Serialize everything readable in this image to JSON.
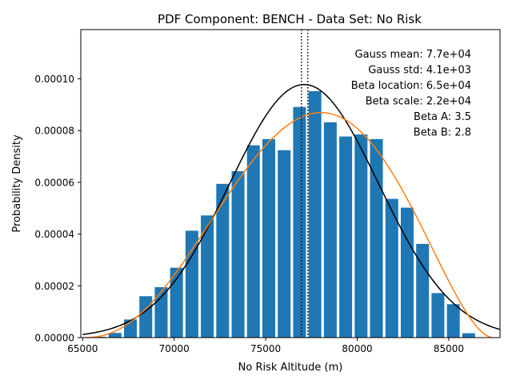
{
  "chart_data": {
    "type": "bar",
    "title": "PDF Component: BENCH - Data Set: No Risk",
    "xlabel": "No Risk Altitude (m)",
    "ylabel": "Probability Density",
    "xlim": [
      64900,
      87800
    ],
    "ylim": [
      0,
      0.000119
    ],
    "grid": false,
    "x_ticks": [
      {
        "value": 65000,
        "label": "65000"
      },
      {
        "value": 70000,
        "label": "70000"
      },
      {
        "value": 75000,
        "label": "75000"
      },
      {
        "value": 80000,
        "label": "80000"
      },
      {
        "value": 85000,
        "label": "85000"
      }
    ],
    "y_ticks": [
      {
        "value": 0,
        "label": "0.00000"
      },
      {
        "value": 2e-05,
        "label": "0.00002"
      },
      {
        "value": 4e-05,
        "label": "0.00004"
      },
      {
        "value": 6e-05,
        "label": "0.00006"
      },
      {
        "value": 8e-05,
        "label": "0.00008"
      },
      {
        "value": 0.0001,
        "label": "0.00010"
      }
    ],
    "bar_color": "#1f77b4",
    "bar_width": 700,
    "bars": [
      {
        "x": 65930,
        "y": 3e-07
      },
      {
        "x": 66770,
        "y": 1.8e-06
      },
      {
        "x": 67610,
        "y": 7e-06
      },
      {
        "x": 68450,
        "y": 1.6e-05
      },
      {
        "x": 69290,
        "y": 1.95e-05
      },
      {
        "x": 70130,
        "y": 2.7e-05
      },
      {
        "x": 70970,
        "y": 4.13e-05
      },
      {
        "x": 71810,
        "y": 4.72e-05
      },
      {
        "x": 72650,
        "y": 5.94e-05
      },
      {
        "x": 73490,
        "y": 6.43e-05
      },
      {
        "x": 74330,
        "y": 7.43e-05
      },
      {
        "x": 75170,
        "y": 7.67e-05
      },
      {
        "x": 76010,
        "y": 7.24e-05
      },
      {
        "x": 76850,
        "y": 8.91e-05
      },
      {
        "x": 77690,
        "y": 9.52e-05
      },
      {
        "x": 78530,
        "y": 8.32e-05
      },
      {
        "x": 79370,
        "y": 7.77e-05
      },
      {
        "x": 80210,
        "y": 7.85e-05
      },
      {
        "x": 81050,
        "y": 7.67e-05
      },
      {
        "x": 81890,
        "y": 5.36e-05
      },
      {
        "x": 82730,
        "y": 5.02e-05
      },
      {
        "x": 83570,
        "y": 3.62e-05
      },
      {
        "x": 84410,
        "y": 1.72e-05
      },
      {
        "x": 85250,
        "y": 1.29e-05
      },
      {
        "x": 86090,
        "y": 1.7e-06
      }
    ],
    "gauss": {
      "color": "#000000",
      "mean": 77100,
      "std": 4080
    },
    "beta": {
      "color": "#ff7f0e",
      "location": 65000,
      "scale": 22400,
      "a": 3.5,
      "b": 2.8
    },
    "vlines": [
      {
        "x": 76950,
        "style": "dotted"
      },
      {
        "x": 77300,
        "style": "dotted"
      }
    ],
    "annotations": [
      "Gauss mean: 7.7e+04",
      "Gauss std: 4.1e+03",
      "Beta location: 6.5e+04",
      "Beta scale: 2.2e+04",
      "Beta A: 3.5",
      "Beta B: 2.8"
    ]
  }
}
